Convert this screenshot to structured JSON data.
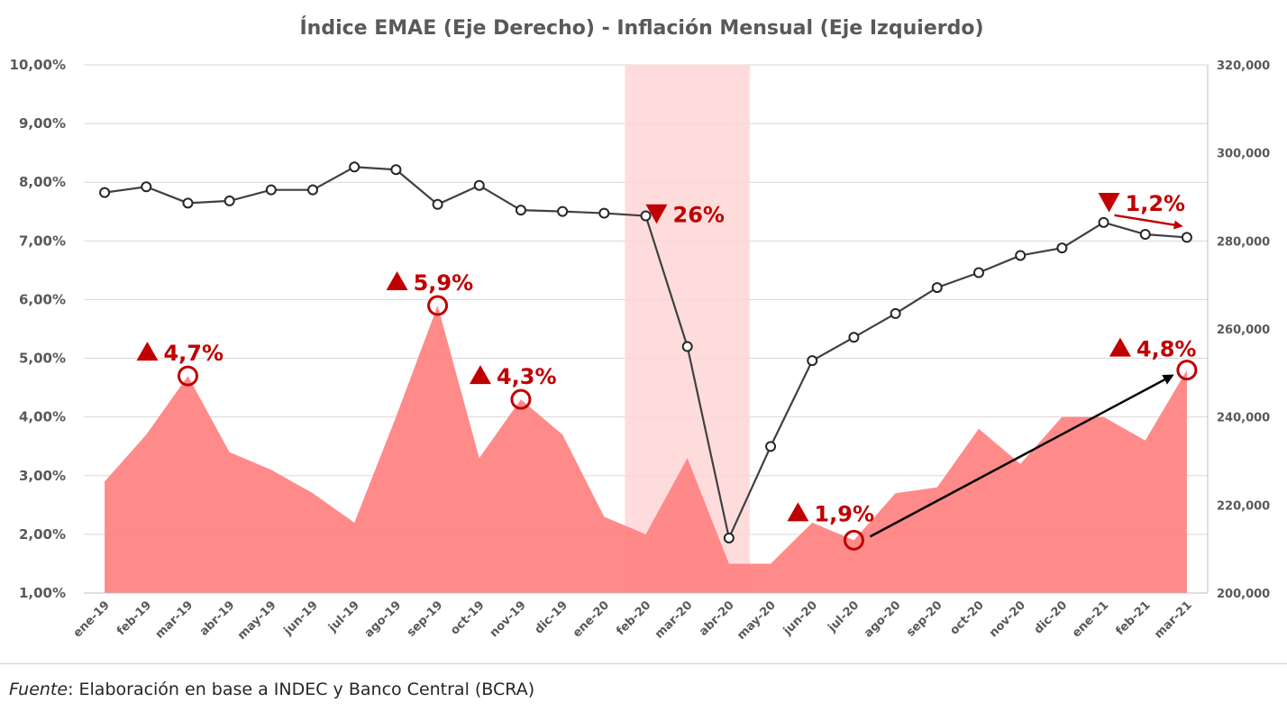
{
  "chart_data": {
    "type": "line+area",
    "title": "Índice EMAE (Eje Derecho) - Inflación Mensual (Eje Izquierdo)",
    "categories": [
      "ene-19",
      "feb-19",
      "mar-19",
      "abr-19",
      "may-19",
      "jun-19",
      "jul-19",
      "ago-19",
      "sep-19",
      "oct-19",
      "nov-19",
      "dic-19",
      "ene-20",
      "feb-20",
      "mar-20",
      "abr-20",
      "may-20",
      "jun-20",
      "jul-20",
      "ago-20",
      "sep-20",
      "oct-20",
      "nov-20",
      "dic-20",
      "ene-21",
      "feb-21",
      "mar-21"
    ],
    "y_left": {
      "ylim": [
        1,
        10
      ],
      "ticks": [
        1,
        2,
        3,
        4,
        5,
        6,
        7,
        8,
        9,
        10
      ],
      "tick_labels": [
        "1,00%",
        "2,00%",
        "3,00%",
        "4,00%",
        "5,00%",
        "6,00%",
        "7,00%",
        "8,00%",
        "9,00%",
        "10,00%"
      ]
    },
    "y_right": {
      "ylim": [
        200000,
        320000
      ],
      "ticks": [
        200000,
        220000,
        240000,
        260000,
        280000,
        300000,
        320000
      ],
      "tick_labels": [
        "200,000",
        "220,000",
        "240,000",
        "260,000",
        "280,000",
        "300,000",
        "320,000"
      ]
    },
    "series": [
      {
        "type": "area",
        "axis": "left",
        "color": "#ff8080",
        "values": [
          2.9,
          3.7,
          4.7,
          3.4,
          3.1,
          2.7,
          2.2,
          4.0,
          5.9,
          3.3,
          4.3,
          3.7,
          2.3,
          2.0,
          3.3,
          1.5,
          1.5,
          2.2,
          1.9,
          2.7,
          2.8,
          3.8,
          3.2,
          4.0,
          4.0,
          3.6,
          4.8
        ]
      },
      {
        "type": "line",
        "axis": "right",
        "color": "#404040",
        "values": [
          291000,
          292300,
          288600,
          289100,
          291600,
          291600,
          296800,
          296200,
          288300,
          292600,
          287000,
          286700,
          286300,
          285700,
          256000,
          212500,
          233300,
          252800,
          258100,
          263500,
          269400,
          272800,
          276700,
          278400,
          284200,
          281500,
          280800
        ]
      }
    ],
    "shaded_band": {
      "from": "feb-20",
      "to": "abr-20",
      "color": "#ffd6d6"
    },
    "annotations": [
      {
        "text": "4,7%",
        "direction": "up",
        "category": "mar-19"
      },
      {
        "text": "5,9%",
        "direction": "up",
        "category": "sep-19"
      },
      {
        "text": "4,3%",
        "direction": "up",
        "category": "nov-19"
      },
      {
        "text": "26%",
        "direction": "down",
        "category": "feb-20"
      },
      {
        "text": "1,9%",
        "direction": "up",
        "category": "jul-20"
      },
      {
        "text": "1,2%",
        "direction": "down",
        "category": "ene-21"
      },
      {
        "text": "4,8%",
        "direction": "up",
        "category": "mar-21"
      }
    ],
    "annotation_color": "#c00000",
    "grid": true,
    "legend": "none"
  },
  "source": {
    "label": "Fuente",
    "text": ": Elaboración en base a INDEC y Banco Central (BCRA)"
  }
}
